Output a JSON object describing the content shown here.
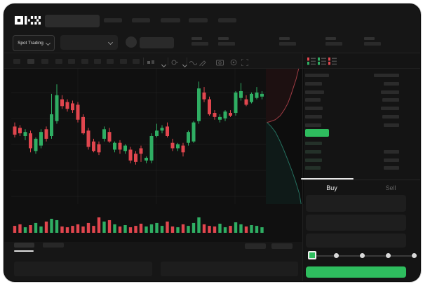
{
  "brand": {
    "logo_text": "OKX"
  },
  "nav": {
    "search_placeholder": "",
    "item_widths": [
      26,
      26,
      28,
      27,
      26
    ]
  },
  "trading_header": {
    "market_selector_label": "Spot Trading",
    "stats_groups": 5
  },
  "toolbar": {
    "timeframe_slots": 10
  },
  "colors": {
    "green": "#2ebd5e",
    "candle_green": "#2fae63",
    "candle_red": "#e1464e",
    "depth_ask_line": "#a03c44",
    "depth_bid_line": "#25705f",
    "price_highlight": "#2ebd5e"
  },
  "order_book": {
    "asks": [
      {
        "l": 34,
        "r": 36
      },
      {
        "l": 24,
        "r": 22
      },
      {
        "l": 27,
        "r": 26
      },
      {
        "l": 22,
        "r": 24
      },
      {
        "l": 25,
        "r": 26
      },
      {
        "l": 24,
        "r": 24
      },
      {
        "l": 23,
        "r": 22
      }
    ],
    "bids": [
      {
        "l": 24,
        "r": 0
      },
      {
        "l": 23,
        "r": 22
      },
      {
        "l": 24,
        "r": 22
      },
      {
        "l": 22,
        "r": 22
      }
    ]
  },
  "trade_panel": {
    "buy_tab": "Buy",
    "sell_tab": "Sell",
    "active_tab": "Buy",
    "slider": {
      "steps": 5,
      "active_step": 0
    }
  },
  "chart_data": {
    "type": "candlestick",
    "values_normalized_0_100": true,
    "grid": {
      "horizontal_lines": 5,
      "vertical_lines": 3
    },
    "candles": [
      [
        57,
        60,
        49,
        51
      ],
      [
        56,
        58,
        50,
        52
      ],
      [
        50,
        55,
        47,
        53
      ],
      [
        52,
        54,
        38,
        41
      ],
      [
        39,
        49,
        37,
        48
      ],
      [
        43,
        55,
        41,
        53
      ],
      [
        55,
        57,
        46,
        48
      ],
      [
        50,
        81,
        48,
        66
      ],
      [
        61,
        88,
        59,
        80
      ],
      [
        77,
        80,
        70,
        72
      ],
      [
        75,
        77,
        68,
        70
      ],
      [
        74,
        76,
        67,
        69
      ],
      [
        73,
        75,
        60,
        62
      ],
      [
        64,
        66,
        51,
        52
      ],
      [
        54,
        56,
        40,
        42
      ],
      [
        46,
        48,
        38,
        39
      ],
      [
        44,
        46,
        36,
        38
      ],
      [
        48,
        57,
        46,
        55
      ],
      [
        53,
        56,
        45,
        46
      ],
      [
        40,
        46,
        38,
        45
      ],
      [
        45,
        47,
        37,
        40
      ],
      [
        39,
        44,
        37,
        43
      ],
      [
        40,
        42,
        30,
        32
      ],
      [
        37,
        39,
        29,
        31
      ],
      [
        41,
        43,
        31,
        37
      ],
      [
        32,
        35,
        30,
        34
      ],
      [
        32,
        52,
        30,
        50
      ],
      [
        50,
        59,
        49,
        54
      ],
      [
        54,
        58,
        52,
        56
      ],
      [
        57,
        60,
        49,
        50
      ],
      [
        45,
        48,
        39,
        41
      ],
      [
        41,
        45,
        39,
        44
      ],
      [
        43,
        45,
        35,
        38
      ],
      [
        45,
        54,
        43,
        53
      ],
      [
        46,
        61,
        45,
        60
      ],
      [
        61,
        90,
        59,
        85
      ],
      [
        82,
        86,
        75,
        77
      ],
      [
        77,
        79,
        65,
        66
      ],
      [
        67,
        69,
        62,
        64
      ],
      [
        62,
        66,
        60,
        64
      ],
      [
        63,
        69,
        61,
        68
      ],
      [
        67,
        69,
        64,
        65
      ],
      [
        67,
        83,
        65,
        82
      ],
      [
        78,
        89,
        76,
        83
      ],
      [
        77,
        80,
        72,
        73
      ],
      [
        75,
        82,
        74,
        81
      ],
      [
        78,
        86,
        77,
        82
      ],
      [
        79,
        83,
        77,
        81
      ]
    ],
    "volumes": [
      45,
      55,
      36,
      50,
      64,
      41,
      73,
      91,
      82,
      41,
      36,
      45,
      55,
      41,
      64,
      45,
      100,
      73,
      82,
      55,
      41,
      50,
      36,
      45,
      59,
      41,
      55,
      64,
      45,
      73,
      41,
      36,
      55,
      45,
      64,
      100,
      55,
      45,
      41,
      59,
      36,
      45,
      68,
      55,
      41,
      50,
      45,
      36
    ],
    "depth": {
      "asks": [
        [
          0,
          0.87
        ],
        [
          0.08,
          0.8
        ],
        [
          0.14,
          0.73
        ],
        [
          0.2,
          0.66
        ],
        [
          0.26,
          0.58
        ],
        [
          0.31,
          0.48
        ],
        [
          0.35,
          0.38
        ],
        [
          0.38,
          0.25
        ],
        [
          0.395,
          0.1
        ],
        [
          0.4,
          0.03
        ]
      ],
      "bids": [
        [
          0.4,
          0.03
        ],
        [
          0.43,
          0.14
        ],
        [
          0.47,
          0.25
        ],
        [
          0.53,
          0.36
        ],
        [
          0.6,
          0.47
        ],
        [
          0.67,
          0.57
        ],
        [
          0.75,
          0.68
        ],
        [
          0.83,
          0.78
        ],
        [
          0.92,
          0.88
        ],
        [
          1.0,
          0.93
        ]
      ]
    }
  }
}
